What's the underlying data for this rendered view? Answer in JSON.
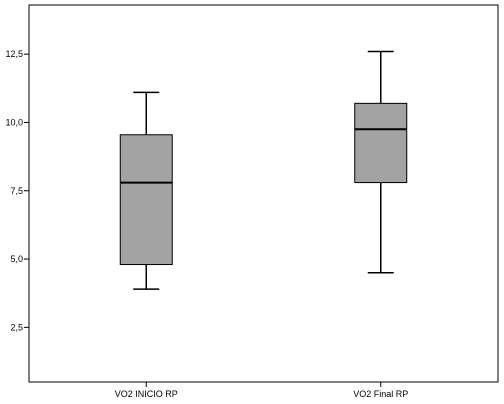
{
  "chart_data": {
    "type": "boxplot",
    "title": "",
    "xlabel": "",
    "ylabel": "",
    "ylim": [
      0.5,
      14.3
    ],
    "yticks": [
      2.5,
      5.0,
      7.5,
      10.0,
      12.5
    ],
    "ytick_labels": [
      "2,5",
      "5,0",
      "7,5",
      "10,0",
      "12,5"
    ],
    "categories": [
      "VO2 INICIO RP",
      "VO2 Final RP"
    ],
    "boxes": [
      {
        "min": 3.9,
        "q1": 4.8,
        "median": 7.8,
        "q3": 9.55,
        "max": 11.1
      },
      {
        "min": 4.5,
        "q1": 7.8,
        "median": 9.75,
        "q3": 10.7,
        "max": 12.6
      }
    ],
    "box_fill": "#a3a3a3",
    "line_color": "#000000",
    "background": "#ffffff",
    "grid": false,
    "legend": "none"
  }
}
